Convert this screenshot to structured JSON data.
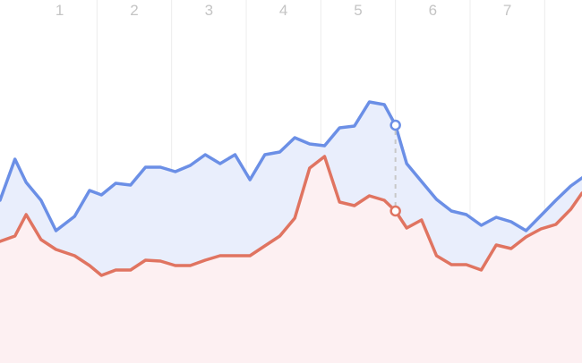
{
  "chart_data": {
    "type": "area",
    "x_ticks": [
      "1",
      "2",
      "3",
      "4",
      "5",
      "6",
      "7"
    ],
    "xlim": [
      0.2,
      8.0
    ],
    "ylim": [
      0,
      406
    ],
    "grid": "vertical",
    "legend": "none",
    "colors": {
      "series_a_line": "#6b8fe6",
      "series_a_fill": "#e9eefc",
      "series_b_line": "#e07461",
      "series_b_fill": "#fdf0f2",
      "crosshair": "#c8c8c8"
    },
    "x": [
      0.2,
      0.4,
      0.55,
      0.75,
      0.95,
      1.2,
      1.4,
      1.56,
      1.75,
      1.95,
      2.15,
      2.35,
      2.55,
      2.75,
      2.95,
      3.15,
      3.35,
      3.55,
      3.75,
      3.95,
      4.15,
      4.35,
      4.55,
      4.75,
      4.95,
      5.15,
      5.35,
      5.5,
      5.65,
      5.85,
      6.05,
      6.25,
      6.45,
      6.65,
      6.85,
      7.05,
      7.25,
      7.45,
      7.65,
      7.85,
      8.0
    ],
    "series": [
      {
        "values": [
          182,
          228,
          202,
          182,
          148,
          164,
          193,
          188,
          201,
          199,
          219,
          219,
          214,
          221,
          233,
          223,
          233,
          205,
          233,
          236,
          252,
          245,
          243,
          263,
          265,
          292,
          289,
          266,
          223,
          203,
          183,
          170,
          166,
          154,
          163,
          158,
          148,
          165,
          182,
          198,
          207
        ]
      },
      {
        "values": [
          136,
          142,
          166,
          138,
          127,
          120,
          109,
          98,
          104,
          104,
          115,
          114,
          109,
          109,
          115,
          120,
          120,
          120,
          131,
          142,
          162,
          218,
          231,
          180,
          176,
          187,
          182,
          170,
          151,
          160,
          120,
          110,
          110,
          104,
          132,
          128,
          141,
          150,
          155,
          172,
          190
        ]
      }
    ],
    "highlight_index": 27
  }
}
